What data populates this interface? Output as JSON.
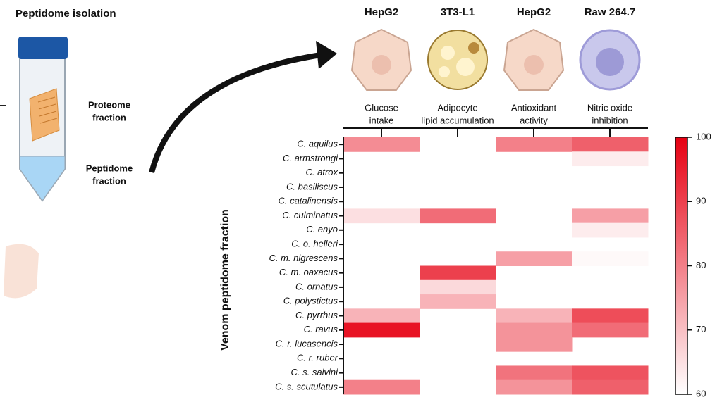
{
  "chart_data": {
    "type": "heatmap",
    "left_title": "Peptidome isolation",
    "tube_labels": [
      [
        "Proteome",
        "fraction"
      ],
      [
        "Peptidome",
        "fraction"
      ]
    ],
    "cell_types": [
      "HepG2",
      "3T3-L1",
      "HepG2",
      "Raw 264.7"
    ],
    "columns": [
      [
        "Glucose",
        "intake"
      ],
      [
        "Adipocyte",
        "lipid accumulation"
      ],
      [
        "Antioxidant",
        "activity"
      ],
      [
        "Nitric oxide",
        "inhibition"
      ]
    ],
    "ylabel": "Venom peptidome fraction",
    "rows": [
      "C. aquilus",
      "C. armstrongi",
      "C. atrox",
      "C. basiliscus",
      "C. catalinensis",
      "C. culminatus",
      "C. enyo",
      "C. o. helleri",
      "C. m. nigrescens",
      "C. m. oaxacus",
      "C. ornatus",
      "C. polystictus",
      "C. pyrrhus",
      "C. ravus",
      "C. r. lucasencis",
      "C. r. ruber",
      "C. s. salvini",
      "C. s. scutulatus"
    ],
    "values": [
      [
        78,
        null,
        80,
        85
      ],
      [
        null,
        null,
        null,
        63
      ],
      [
        null,
        null,
        null,
        null
      ],
      [
        null,
        null,
        null,
        null
      ],
      [
        null,
        null,
        null,
        null
      ],
      [
        65,
        83,
        null,
        75
      ],
      [
        null,
        null,
        null,
        63
      ],
      [
        null,
        null,
        null,
        null
      ],
      [
        null,
        null,
        75,
        61
      ],
      [
        null,
        90,
        null,
        null
      ],
      [
        null,
        66,
        null,
        null
      ],
      [
        null,
        72,
        null,
        null
      ],
      [
        72,
        null,
        72,
        88
      ],
      [
        97,
        null,
        77,
        83
      ],
      [
        null,
        null,
        77,
        null
      ],
      [
        null,
        null,
        null,
        null
      ],
      [
        null,
        null,
        82,
        87
      ],
      [
        80,
        null,
        77,
        85
      ]
    ],
    "zlim": [
      60,
      100
    ],
    "zticks": [
      60,
      70,
      80,
      90,
      100
    ],
    "colormap": [
      "#ffffff",
      "#e60012"
    ]
  }
}
